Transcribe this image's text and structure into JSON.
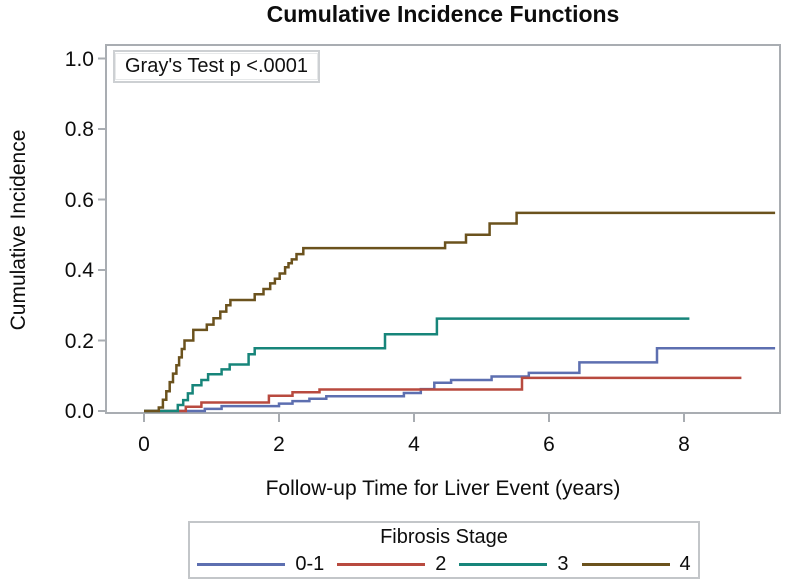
{
  "chart_data": {
    "type": "line",
    "step": "hv",
    "title": "Cumulative Incidence Functions",
    "annotation": "Gray's Test p <.0001",
    "x_axis": {
      "title": "Follow-up Time for Liver Event (years)",
      "ticks": [
        {
          "label": "0",
          "value": 0
        },
        {
          "label": "2",
          "value": 2
        },
        {
          "label": "4",
          "value": 4
        },
        {
          "label": "6",
          "value": 6
        },
        {
          "label": "8",
          "value": 8
        }
      ],
      "range": [
        -0.56,
        9.42
      ]
    },
    "y_axis": {
      "title": "Cumulative Incidence",
      "ticks": [
        {
          "label": "1.0",
          "value": 1.0
        },
        {
          "label": "0.8",
          "value": 0.8
        },
        {
          "label": "0.6",
          "value": 0.6
        },
        {
          "label": "0.4",
          "value": 0.4
        },
        {
          "label": "0.2",
          "value": 0.2
        },
        {
          "label": "0.0",
          "value": 0.0
        }
      ],
      "range": [
        -0.006,
        1.04
      ]
    },
    "grid": false,
    "legend": {
      "title": "Fibrosis Stage",
      "position": "bottom"
    },
    "frame_color": "#a9adb2",
    "series": [
      {
        "name": "0-1",
        "color": "#5d6fb0",
        "points": [
          [
            0,
            0
          ],
          [
            0.9,
            0.006
          ],
          [
            1.15,
            0.014
          ],
          [
            2.0,
            0.021
          ],
          [
            2.2,
            0.028
          ],
          [
            2.45,
            0.035
          ],
          [
            2.7,
            0.042
          ],
          [
            3.85,
            0.051
          ],
          [
            4.1,
            0.062
          ],
          [
            4.3,
            0.08
          ],
          [
            4.55,
            0.088
          ],
          [
            5.15,
            0.098
          ],
          [
            5.7,
            0.108
          ],
          [
            6.45,
            0.138
          ],
          [
            7.6,
            0.178
          ],
          [
            9.35,
            0.178
          ]
        ]
      },
      {
        "name": "2",
        "color": "#b84a3f",
        "points": [
          [
            0,
            0
          ],
          [
            0.62,
            0.012
          ],
          [
            0.85,
            0.024
          ],
          [
            1.85,
            0.043
          ],
          [
            2.2,
            0.053
          ],
          [
            2.6,
            0.061
          ],
          [
            5.6,
            0.094
          ],
          [
            8.85,
            0.094
          ]
        ]
      },
      {
        "name": "3",
        "color": "#17857a",
        "points": [
          [
            0,
            0
          ],
          [
            0.5,
            0.017
          ],
          [
            0.58,
            0.031
          ],
          [
            0.65,
            0.05
          ],
          [
            0.72,
            0.073
          ],
          [
            0.85,
            0.088
          ],
          [
            0.95,
            0.104
          ],
          [
            1.15,
            0.118
          ],
          [
            1.27,
            0.132
          ],
          [
            1.55,
            0.161
          ],
          [
            1.64,
            0.178
          ],
          [
            3.57,
            0.218
          ],
          [
            4.34,
            0.262
          ],
          [
            8.08,
            0.262
          ]
        ]
      },
      {
        "name": "4",
        "color": "#6b521d",
        "points": [
          [
            0,
            0
          ],
          [
            0.22,
            0.01
          ],
          [
            0.28,
            0.032
          ],
          [
            0.33,
            0.056
          ],
          [
            0.38,
            0.082
          ],
          [
            0.43,
            0.106
          ],
          [
            0.48,
            0.13
          ],
          [
            0.52,
            0.152
          ],
          [
            0.56,
            0.176
          ],
          [
            0.6,
            0.2
          ],
          [
            0.73,
            0.23
          ],
          [
            0.93,
            0.245
          ],
          [
            1.03,
            0.263
          ],
          [
            1.13,
            0.282
          ],
          [
            1.22,
            0.3
          ],
          [
            1.28,
            0.315
          ],
          [
            1.64,
            0.331
          ],
          [
            1.77,
            0.346
          ],
          [
            1.87,
            0.362
          ],
          [
            1.94,
            0.375
          ],
          [
            2.01,
            0.39
          ],
          [
            2.09,
            0.408
          ],
          [
            2.14,
            0.419
          ],
          [
            2.19,
            0.43
          ],
          [
            2.26,
            0.445
          ],
          [
            2.36,
            0.462
          ],
          [
            4.46,
            0.478
          ],
          [
            4.77,
            0.5
          ],
          [
            5.12,
            0.532
          ],
          [
            5.52,
            0.562
          ],
          [
            9.35,
            0.562
          ]
        ]
      }
    ]
  }
}
